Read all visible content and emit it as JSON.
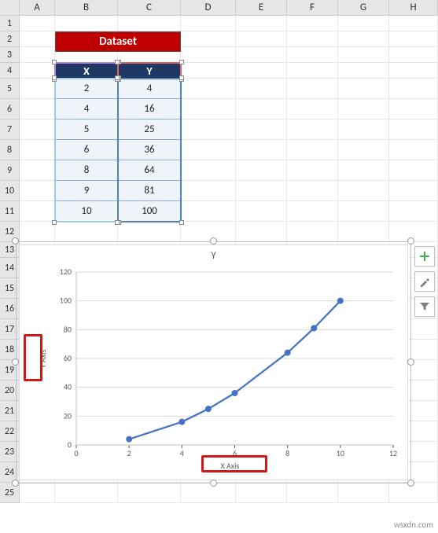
{
  "columns": {
    "labels": [
      "",
      "A",
      "B",
      "C",
      "D",
      "E",
      "F",
      "G",
      "H"
    ],
    "widths": [
      25,
      45,
      80,
      80,
      70,
      65,
      65,
      65,
      62
    ]
  },
  "rows": {
    "count": 25,
    "heights": [
      20,
      20,
      20,
      20,
      20,
      26,
      26,
      26,
      26,
      26,
      26,
      26,
      26,
      20,
      26,
      26,
      26,
      26,
      26,
      26,
      26,
      26,
      26,
      26,
      26,
      26
    ]
  },
  "banner": {
    "text": "Dataset",
    "bg": "#c00000",
    "fg": "#ffffff",
    "col_start": 2,
    "col_span": 2,
    "row": 2
  },
  "table": {
    "header_row": 4,
    "col_start": 2,
    "headers": {
      "x": "X",
      "y": "Y"
    },
    "header_bg": "#1f3864",
    "header_fg": "#ffffff",
    "cell_bg": "#eff3fa",
    "border": "#8faadc",
    "rows": [
      {
        "x": "2",
        "y": "4"
      },
      {
        "x": "4",
        "y": "16"
      },
      {
        "x": "5",
        "y": "25"
      },
      {
        "x": "6",
        "y": "36"
      },
      {
        "x": "8",
        "y": "64"
      },
      {
        "x": "9",
        "y": "81"
      },
      {
        "x": "10",
        "y": "100"
      }
    ],
    "sel_colors": {
      "x_header": "#b381d9",
      "y_header": "#e06666",
      "x_data": "#a6c8e8",
      "y_data": "#4f81bd"
    }
  },
  "chart": {
    "type": "line",
    "title": "Y",
    "title_fontsize": 13,
    "title_color": "#595959",
    "x": [
      2,
      4,
      5,
      6,
      8,
      9,
      10
    ],
    "y": [
      4,
      16,
      25,
      36,
      64,
      81,
      100
    ],
    "line_color": "#4472c4",
    "line_width": 2.25,
    "marker": "circle",
    "marker_size": 5,
    "marker_fill": "#4472c4",
    "marker_border": "#4472c4",
    "xlim": [
      0,
      12
    ],
    "ylim": [
      0,
      120
    ],
    "xtick_step": 2,
    "ytick_step": 20,
    "tick_fontsize": 10,
    "tick_color": "#595959",
    "grid_color": "#d9d9d9",
    "grid": true,
    "grid_axis": "y",
    "background_color": "#ffffff",
    "xlabel": "X Axis",
    "ylabel": "Y Axis",
    "label_fontsize": 10,
    "label_color": "#595959",
    "plot_border": "#bfbfbf"
  },
  "annotations": {
    "ylabel_box": true,
    "xlabel_box": true,
    "color": "#d01818"
  },
  "side_tools": {
    "plus": "+",
    "brush": "brush-icon",
    "filter": "filter-icon"
  },
  "watermark": "wsxdn.com"
}
